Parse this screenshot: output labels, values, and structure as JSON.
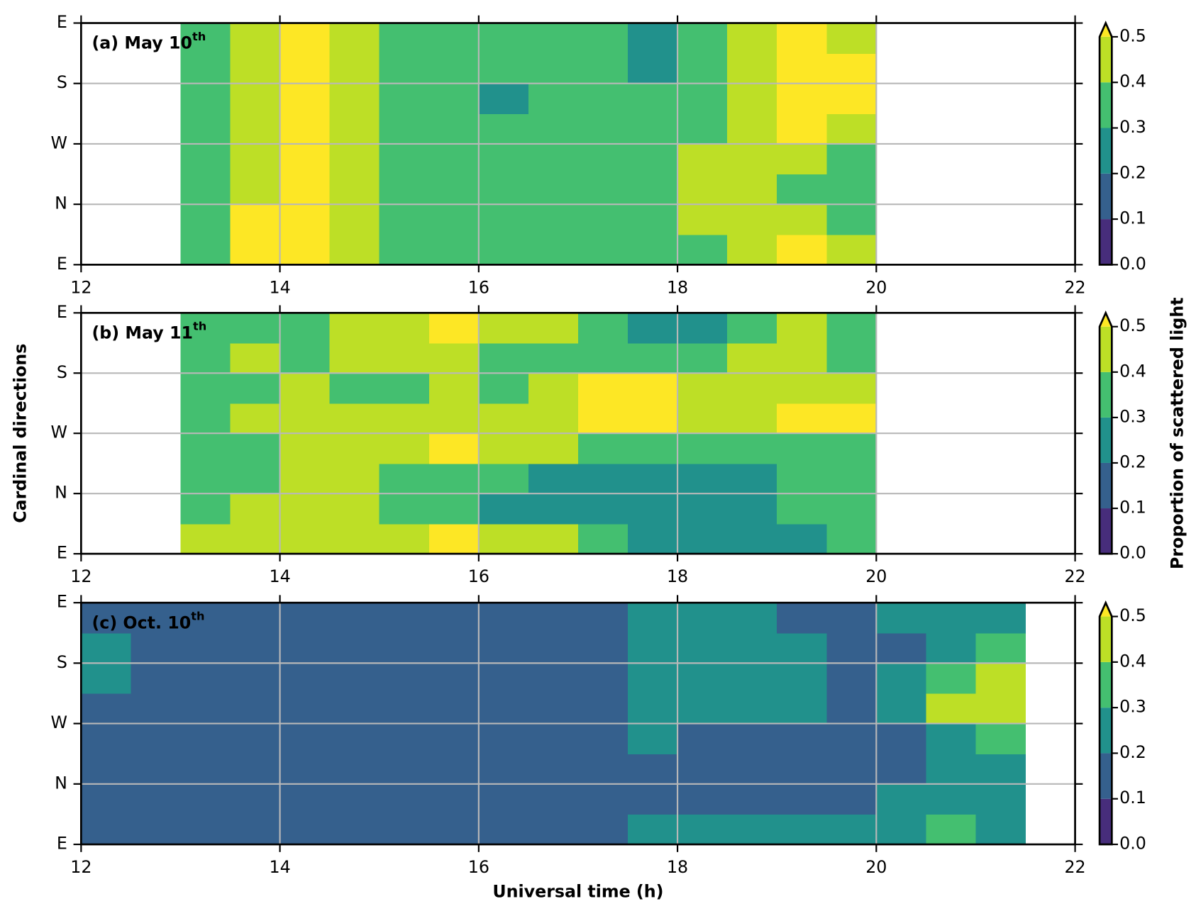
{
  "chart_data": [
    {
      "type": "contour",
      "title": "(a) May 10",
      "title_sup": "th",
      "x": [
        12.25,
        12.75,
        13.25,
        13.75,
        14.25,
        14.75,
        15.25,
        15.75,
        16.25,
        16.75,
        17.25,
        17.75,
        18.25,
        18.75,
        19.25,
        19.75,
        20.25,
        20.75,
        21.25,
        21.75
      ],
      "y": [
        0.25,
        0.75,
        1.25,
        1.75,
        2.25,
        2.75,
        3.25,
        3.75
      ],
      "z": [
        [
          null,
          null,
          0.35,
          0.55,
          0.55,
          0.45,
          0.35,
          0.35,
          0.35,
          0.35,
          0.35,
          0.35,
          0.35,
          0.42,
          0.52,
          0.45,
          null,
          null,
          null,
          null
        ],
        [
          null,
          null,
          0.35,
          0.55,
          0.55,
          0.45,
          0.35,
          0.35,
          0.35,
          0.35,
          0.35,
          0.35,
          0.45,
          0.45,
          0.42,
          0.35,
          null,
          null,
          null,
          null
        ],
        [
          null,
          null,
          0.35,
          0.45,
          0.55,
          0.45,
          0.35,
          0.35,
          0.35,
          0.35,
          0.35,
          0.35,
          0.45,
          0.45,
          0.35,
          0.35,
          null,
          null,
          null,
          null
        ],
        [
          null,
          null,
          0.35,
          0.45,
          0.55,
          0.45,
          0.35,
          0.35,
          0.35,
          0.35,
          0.35,
          0.35,
          0.42,
          0.45,
          0.42,
          0.35,
          null,
          null,
          null,
          null
        ],
        [
          null,
          null,
          0.35,
          0.45,
          0.55,
          0.45,
          0.35,
          0.35,
          0.35,
          0.35,
          0.35,
          0.35,
          0.35,
          0.45,
          0.55,
          0.45,
          null,
          null,
          null,
          null
        ],
        [
          null,
          null,
          0.35,
          0.45,
          0.55,
          0.45,
          0.35,
          0.35,
          0.28,
          0.35,
          0.35,
          0.35,
          0.35,
          0.45,
          0.55,
          0.55,
          null,
          null,
          null,
          null
        ],
        [
          null,
          null,
          0.35,
          0.45,
          0.52,
          0.45,
          0.35,
          0.35,
          0.35,
          0.35,
          0.35,
          0.28,
          0.35,
          0.45,
          0.55,
          0.55,
          null,
          null,
          null,
          null
        ],
        [
          null,
          null,
          0.35,
          0.45,
          0.55,
          0.45,
          0.35,
          0.35,
          0.35,
          0.35,
          0.35,
          0.28,
          0.35,
          0.42,
          0.55,
          0.48,
          null,
          null,
          null,
          null
        ]
      ],
      "xlim": [
        12,
        22
      ],
      "xticks": [
        12,
        14,
        16,
        18,
        20,
        22
      ],
      "ylim": [
        0,
        4
      ],
      "yticks": [
        {
          "value": 0,
          "label": "E"
        },
        {
          "value": 1,
          "label": "N"
        },
        {
          "value": 2,
          "label": "W"
        },
        {
          "value": 3,
          "label": "S"
        },
        {
          "value": 4,
          "label": "E"
        }
      ],
      "levels": [
        0,
        0.1,
        0.2,
        0.3,
        0.4,
        0.5
      ],
      "colors": [
        "#472d7b",
        "#35608d",
        "#21918c",
        "#44bf70",
        "#bddf26",
        "#fde725"
      ],
      "colorbar_ticks": [
        {
          "value": 0,
          "label": "0.0"
        },
        0.1,
        0.2,
        0.3,
        0.4,
        0.5
      ],
      "grid": true
    },
    {
      "type": "contour",
      "title": "(b) May 11",
      "title_sup": "th",
      "ylabel": "Cardinal directions",
      "colorbar_label": "Proportion of scattered light",
      "x": [
        12.25,
        12.75,
        13.25,
        13.75,
        14.25,
        14.75,
        15.25,
        15.75,
        16.25,
        16.75,
        17.25,
        17.75,
        18.25,
        18.75,
        19.25,
        19.75,
        20.25,
        20.75,
        21.25,
        21.75
      ],
      "y": [
        0.25,
        0.75,
        1.25,
        1.75,
        2.25,
        2.75,
        3.25,
        3.75
      ],
      "z": [
        [
          null,
          null,
          0.45,
          0.45,
          0.45,
          0.45,
          0.42,
          0.52,
          0.48,
          0.42,
          0.35,
          0.28,
          0.28,
          0.28,
          0.28,
          0.35,
          null,
          null,
          null,
          null
        ],
        [
          null,
          null,
          0.38,
          0.45,
          0.45,
          0.45,
          0.35,
          0.35,
          0.28,
          0.28,
          0.28,
          0.28,
          0.28,
          0.28,
          0.35,
          0.35,
          null,
          null,
          null,
          null
        ],
        [
          null,
          null,
          0.35,
          0.38,
          0.45,
          0.45,
          0.35,
          0.35,
          0.35,
          0.28,
          0.28,
          0.28,
          0.28,
          0.28,
          0.35,
          0.35,
          null,
          null,
          null,
          null
        ],
        [
          null,
          null,
          0.35,
          0.35,
          0.45,
          0.45,
          0.45,
          0.52,
          0.48,
          0.45,
          0.38,
          0.35,
          0.35,
          0.35,
          0.38,
          0.38,
          null,
          null,
          null,
          null
        ],
        [
          null,
          null,
          0.35,
          0.45,
          0.42,
          0.45,
          0.45,
          0.45,
          0.45,
          0.48,
          0.55,
          0.55,
          0.48,
          0.45,
          0.52,
          0.5,
          null,
          null,
          null,
          null
        ],
        [
          null,
          null,
          0.35,
          0.35,
          0.42,
          0.38,
          0.35,
          0.45,
          0.35,
          0.45,
          0.52,
          0.5,
          0.45,
          0.45,
          0.45,
          0.45,
          null,
          null,
          null,
          null
        ],
        [
          null,
          null,
          0.35,
          0.45,
          0.35,
          0.45,
          0.45,
          0.45,
          0.35,
          0.35,
          0.35,
          0.38,
          0.35,
          0.45,
          0.45,
          0.35,
          null,
          null,
          null,
          null
        ],
        [
          null,
          null,
          0.38,
          0.35,
          0.38,
          0.45,
          0.45,
          0.52,
          0.45,
          0.45,
          0.35,
          0.28,
          0.28,
          0.35,
          0.45,
          0.35,
          null,
          null,
          null,
          null
        ]
      ],
      "xlim": [
        12,
        22
      ],
      "xticks": [
        12,
        14,
        16,
        18,
        20,
        22
      ],
      "ylim": [
        0,
        4
      ],
      "yticks": [
        {
          "value": 0,
          "label": "E"
        },
        {
          "value": 1,
          "label": "N"
        },
        {
          "value": 2,
          "label": "W"
        },
        {
          "value": 3,
          "label": "S"
        },
        {
          "value": 4,
          "label": "E"
        }
      ],
      "levels": [
        0,
        0.1,
        0.2,
        0.3,
        0.4,
        0.5
      ],
      "colors": [
        "#472d7b",
        "#35608d",
        "#21918c",
        "#44bf70",
        "#bddf26",
        "#fde725"
      ],
      "colorbar_ticks": [
        {
          "value": 0,
          "label": "0.0"
        },
        0.1,
        0.2,
        0.3,
        0.4,
        0.5
      ],
      "grid": true
    },
    {
      "type": "contour",
      "title": "(c) Oct. 10",
      "title_sup": "th",
      "xlabel": "Universal time (h)",
      "x": [
        12.25,
        12.75,
        13.25,
        13.75,
        14.25,
        14.75,
        15.25,
        15.75,
        16.25,
        16.75,
        17.25,
        17.75,
        18.25,
        18.75,
        19.25,
        19.75,
        20.25,
        20.75,
        21.25,
        21.75
      ],
      "y": [
        0.25,
        0.75,
        1.25,
        1.75,
        2.25,
        2.75,
        3.25,
        3.75
      ],
      "z": [
        [
          0.15,
          0.15,
          0.15,
          0.15,
          0.15,
          0.15,
          0.15,
          0.15,
          0.15,
          0.15,
          0.15,
          0.22,
          0.22,
          0.22,
          0.22,
          0.22,
          0.25,
          0.32,
          0.28,
          null
        ],
        [
          0.15,
          0.15,
          0.15,
          0.15,
          0.15,
          0.15,
          0.15,
          0.15,
          0.15,
          0.15,
          0.15,
          0.15,
          0.15,
          0.15,
          0.15,
          0.15,
          0.25,
          0.25,
          0.25,
          null
        ],
        [
          0.15,
          0.15,
          0.15,
          0.15,
          0.15,
          0.15,
          0.15,
          0.15,
          0.15,
          0.15,
          0.15,
          0.15,
          0.15,
          0.15,
          0.15,
          0.15,
          0.18,
          0.25,
          0.25,
          null
        ],
        [
          0.15,
          0.15,
          0.15,
          0.15,
          0.15,
          0.15,
          0.15,
          0.15,
          0.15,
          0.15,
          0.15,
          0.22,
          0.18,
          0.15,
          0.15,
          0.18,
          0.15,
          0.25,
          0.32,
          null
        ],
        [
          0.15,
          0.15,
          0.15,
          0.15,
          0.15,
          0.15,
          0.15,
          0.15,
          0.15,
          0.15,
          0.15,
          0.25,
          0.25,
          0.25,
          0.22,
          0.18,
          0.25,
          0.42,
          0.42,
          null
        ],
        [
          0.22,
          0.15,
          0.15,
          0.15,
          0.15,
          0.15,
          0.15,
          0.15,
          0.15,
          0.15,
          0.15,
          0.25,
          0.25,
          0.25,
          0.25,
          0.18,
          0.22,
          0.32,
          0.42,
          null
        ],
        [
          0.22,
          0.15,
          0.15,
          0.15,
          0.15,
          0.15,
          0.15,
          0.15,
          0.15,
          0.15,
          0.15,
          0.22,
          0.25,
          0.25,
          0.25,
          0.18,
          0.18,
          0.25,
          0.32,
          null
        ],
        [
          0.15,
          0.15,
          0.15,
          0.15,
          0.15,
          0.15,
          0.15,
          0.15,
          0.15,
          0.15,
          0.15,
          0.22,
          0.25,
          0.25,
          0.18,
          0.15,
          0.22,
          0.28,
          0.25,
          null
        ]
      ],
      "xlim": [
        12,
        22
      ],
      "xticks": [
        12,
        14,
        16,
        18,
        20,
        22
      ],
      "ylim": [
        0,
        4
      ],
      "yticks": [
        {
          "value": 0,
          "label": "E"
        },
        {
          "value": 1,
          "label": "N"
        },
        {
          "value": 2,
          "label": "W"
        },
        {
          "value": 3,
          "label": "S"
        },
        {
          "value": 4,
          "label": "E"
        }
      ],
      "levels": [
        0,
        0.1,
        0.2,
        0.3,
        0.4,
        0.5
      ],
      "colors": [
        "#472d7b",
        "#35608d",
        "#21918c",
        "#44bf70",
        "#bddf26",
        "#fde725"
      ],
      "colorbar_ticks": [
        {
          "value": 0,
          "label": "0.0"
        },
        0.1,
        0.2,
        0.3,
        0.4,
        0.5
      ],
      "grid": true
    }
  ]
}
